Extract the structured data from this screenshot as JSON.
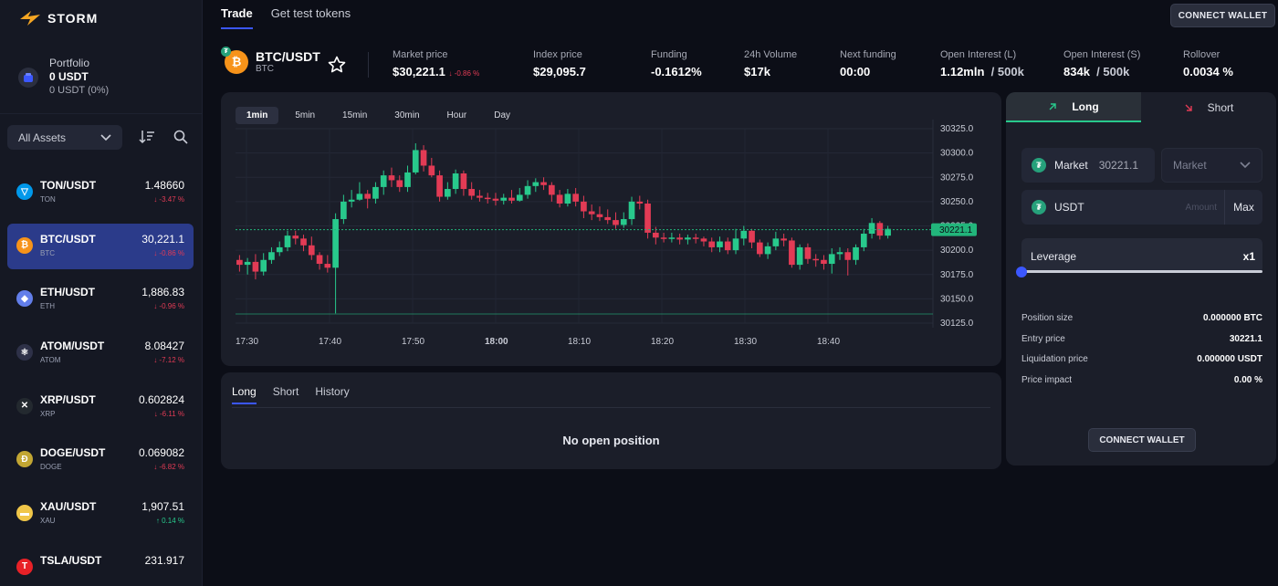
{
  "brand": {
    "name": "STORM"
  },
  "portfolio": {
    "label": "Portfolio",
    "value": "0 USDT",
    "sub": "0 USDT (0%)"
  },
  "filter": {
    "selected": "All Assets"
  },
  "assets": [
    {
      "symbol": "TON/USDT",
      "base": "TON",
      "price": "1.48660",
      "change": "↓ -3.47 %",
      "dir": "neg",
      "color": "#0098ea",
      "glyph": "▽"
    },
    {
      "symbol": "BTC/USDT",
      "base": "BTC",
      "price": "30,221.1",
      "change": "↓ -0.86 %",
      "dir": "neg",
      "color": "#f7931a",
      "glyph": "₿",
      "active": true
    },
    {
      "symbol": "ETH/USDT",
      "base": "ETH",
      "price": "1,886.83",
      "change": "↓ -0.96 %",
      "dir": "neg",
      "color": "#627eea",
      "glyph": "◆"
    },
    {
      "symbol": "ATOM/USDT",
      "base": "ATOM",
      "price": "8.08427",
      "change": "↓ -7.12 %",
      "dir": "neg",
      "color": "#2e3148",
      "glyph": "⚛"
    },
    {
      "symbol": "XRP/USDT",
      "base": "XRP",
      "price": "0.602824",
      "change": "↓ -6.11 %",
      "dir": "neg",
      "color": "#23292f",
      "glyph": "✕"
    },
    {
      "symbol": "DOGE/USDT",
      "base": "DOGE",
      "price": "0.069082",
      "change": "↓ -6.82 %",
      "dir": "neg",
      "color": "#c2a633",
      "glyph": "Ð"
    },
    {
      "symbol": "XAU/USDT",
      "base": "XAU",
      "price": "1,907.51",
      "change": "↑ 0.14 %",
      "dir": "pos",
      "color": "#f0c649",
      "glyph": "▬"
    },
    {
      "symbol": "TSLA/USDT",
      "base": "",
      "price": "231.917",
      "change": "",
      "dir": "neg",
      "color": "#e82127",
      "glyph": "T"
    }
  ],
  "nav": {
    "trade": "Trade",
    "test_tokens": "Get test tokens",
    "connect": "CONNECT WALLET"
  },
  "pair": {
    "symbol": "BTC/USDT",
    "base": "BTC"
  },
  "stats": {
    "market_price": {
      "label": "Market price",
      "value": "$30,221.1",
      "change": "↓ -0.86 %"
    },
    "index_price": {
      "label": "Index price",
      "value": "$29,095.7"
    },
    "funding": {
      "label": "Funding",
      "value": "-0.1612%"
    },
    "volume": {
      "label": "24h Volume",
      "value": "$17k"
    },
    "next_funding": {
      "label": "Next funding",
      "value": "00:00"
    },
    "oi_long": {
      "label": "Open Interest (L)",
      "value": "1.12mln",
      "max": "/ 500k"
    },
    "oi_short": {
      "label": "Open Interest (S)",
      "value": "834k",
      "max": "/ 500k"
    },
    "rollover": {
      "label": "Rollover",
      "value": "0.0034 %"
    }
  },
  "timeframes": [
    "1min",
    "5min",
    "15min",
    "30min",
    "Hour",
    "Day"
  ],
  "chart_data": {
    "type": "candlestick",
    "current_price": 30221.1,
    "current_label": "30221.1",
    "ylim": [
      30125,
      30325
    ],
    "yticks": [
      "30325.0",
      "30300.0",
      "30275.0",
      "30250.0",
      "30225.0",
      "30200.0",
      "30175.0",
      "30150.0",
      "30125.0"
    ],
    "xticks": [
      "17:30",
      "17:40",
      "17:50",
      "18:00",
      "18:10",
      "18:20",
      "18:30",
      "18:40"
    ],
    "bold_xtick": "18:00",
    "candles": [
      [
        30190,
        30185,
        30195,
        30178
      ],
      [
        30185,
        30188,
        30192,
        30175
      ],
      [
        30188,
        30178,
        30196,
        30170
      ],
      [
        30178,
        30190,
        30197,
        30174
      ],
      [
        30190,
        30198,
        30203,
        30186
      ],
      [
        30198,
        30203,
        30209,
        30194
      ],
      [
        30203,
        30215,
        30220,
        30199
      ],
      [
        30215,
        30212,
        30220,
        30206
      ],
      [
        30212,
        30205,
        30216,
        30199
      ],
      [
        30205,
        30195,
        30214,
        30190
      ],
      [
        30195,
        30186,
        30198,
        30180
      ],
      [
        30186,
        30182,
        30195,
        30177
      ],
      [
        30182,
        30232,
        30238,
        30135
      ],
      [
        30232,
        30250,
        30257,
        30227
      ],
      [
        30250,
        30252,
        30262,
        30244
      ],
      [
        30252,
        30258,
        30270,
        30251
      ],
      [
        30258,
        30253,
        30262,
        30243
      ],
      [
        30253,
        30265,
        30270,
        30248
      ],
      [
        30265,
        30277,
        30282,
        30257
      ],
      [
        30277,
        30272,
        30285,
        30265
      ],
      [
        30272,
        30265,
        30277,
        30260
      ],
      [
        30265,
        30280,
        30287,
        30260
      ],
      [
        30280,
        30303,
        30310,
        30278
      ],
      [
        30303,
        30287,
        30308,
        30281
      ],
      [
        30287,
        30277,
        30295,
        30275
      ],
      [
        30277,
        30255,
        30282,
        30250
      ],
      [
        30255,
        30263,
        30270,
        30252
      ],
      [
        30263,
        30279,
        30283,
        30258
      ],
      [
        30279,
        30263,
        30282,
        30256
      ],
      [
        30263,
        30256,
        30270,
        30252
      ],
      [
        30256,
        30254,
        30262,
        30250
      ],
      [
        30254,
        30253,
        30259,
        30248
      ],
      [
        30253,
        30251,
        30259,
        30246
      ],
      [
        30251,
        30254,
        30258,
        30247
      ],
      [
        30254,
        30251,
        30262,
        30248
      ],
      [
        30251,
        30257,
        30264,
        30250
      ],
      [
        30257,
        30266,
        30272,
        30253
      ],
      [
        30266,
        30270,
        30274,
        30260
      ],
      [
        30270,
        30267,
        30275,
        30262
      ],
      [
        30267,
        30257,
        30270,
        30250
      ],
      [
        30257,
        30248,
        30262,
        30244
      ],
      [
        30248,
        30258,
        30263,
        30245
      ],
      [
        30258,
        30250,
        30264,
        30245
      ],
      [
        30250,
        30240,
        30256,
        30233
      ],
      [
        30240,
        30237,
        30247,
        30231
      ],
      [
        30237,
        30234,
        30245,
        30230
      ],
      [
        30234,
        30231,
        30242,
        30227
      ],
      [
        30231,
        30226,
        30239,
        30222
      ],
      [
        30226,
        30232,
        30239,
        30223
      ],
      [
        30232,
        30250,
        30255,
        30226
      ],
      [
        30250,
        30248,
        30256,
        30242
      ],
      [
        30248,
        30218,
        30252,
        30212
      ],
      [
        30218,
        30213,
        30224,
        30206
      ],
      [
        30213,
        30212,
        30218,
        30208
      ],
      [
        30212,
        30213,
        30218,
        30208
      ],
      [
        30213,
        30211,
        30217,
        30206
      ],
      [
        30211,
        30213,
        30216,
        30206
      ],
      [
        30213,
        30212,
        30217,
        30207
      ],
      [
        30212,
        30209,
        30214,
        30204
      ],
      [
        30209,
        30203,
        30213,
        30198
      ],
      [
        30203,
        30209,
        30214,
        30198
      ],
      [
        30209,
        30200,
        30213,
        30196
      ],
      [
        30200,
        30212,
        30222,
        30196
      ],
      [
        30212,
        30220,
        30225,
        30205
      ],
      [
        30220,
        30208,
        30222,
        30202
      ],
      [
        30208,
        30196,
        30211,
        30193
      ],
      [
        30196,
        30204,
        30208,
        30191
      ],
      [
        30204,
        30212,
        30219,
        30200
      ],
      [
        30212,
        30210,
        30217,
        30204
      ],
      [
        30210,
        30185,
        30213,
        30182
      ],
      [
        30185,
        30203,
        30206,
        30180
      ],
      [
        30203,
        30191,
        30207,
        30186
      ],
      [
        30191,
        30190,
        30196,
        30183
      ],
      [
        30190,
        30186,
        30195,
        30180
      ],
      [
        30186,
        30196,
        30202,
        30176
      ],
      [
        30196,
        30198,
        30203,
        30190
      ],
      [
        30198,
        30190,
        30202,
        30174
      ],
      [
        30190,
        30203,
        30206,
        30185
      ],
      [
        30203,
        30217,
        30222,
        30199
      ],
      [
        30217,
        30228,
        30233,
        30212
      ],
      [
        30228,
        30215,
        30230,
        30211
      ],
      [
        30215,
        30222,
        30225,
        30212
      ]
    ]
  },
  "positions": {
    "tabs": [
      "Long",
      "Short",
      "History"
    ],
    "empty": "No open position"
  },
  "order": {
    "long_label": "Long",
    "short_label": "Short",
    "market_label": "Market",
    "market_value": "30221.1",
    "order_type": "Market",
    "amount_currency": "USDT",
    "amount_placeholder": "Amount",
    "max_label": "Max",
    "leverage_label": "Leverage",
    "leverage_value": "x1",
    "leverage_fraction": 0,
    "info": [
      {
        "label": "Position size",
        "value": "0.000000 BTC"
      },
      {
        "label": "Entry price",
        "value": "30221.1"
      },
      {
        "label": "Liquidation price",
        "value": "0.000000 USDT"
      },
      {
        "label": "Price impact",
        "value": "0.00 %"
      }
    ],
    "connect": "CONNECT WALLET"
  },
  "colors": {
    "up": "#28c98c",
    "down": "#e23b55",
    "accent": "#3b57ff",
    "price_tag": "#22b57b"
  }
}
